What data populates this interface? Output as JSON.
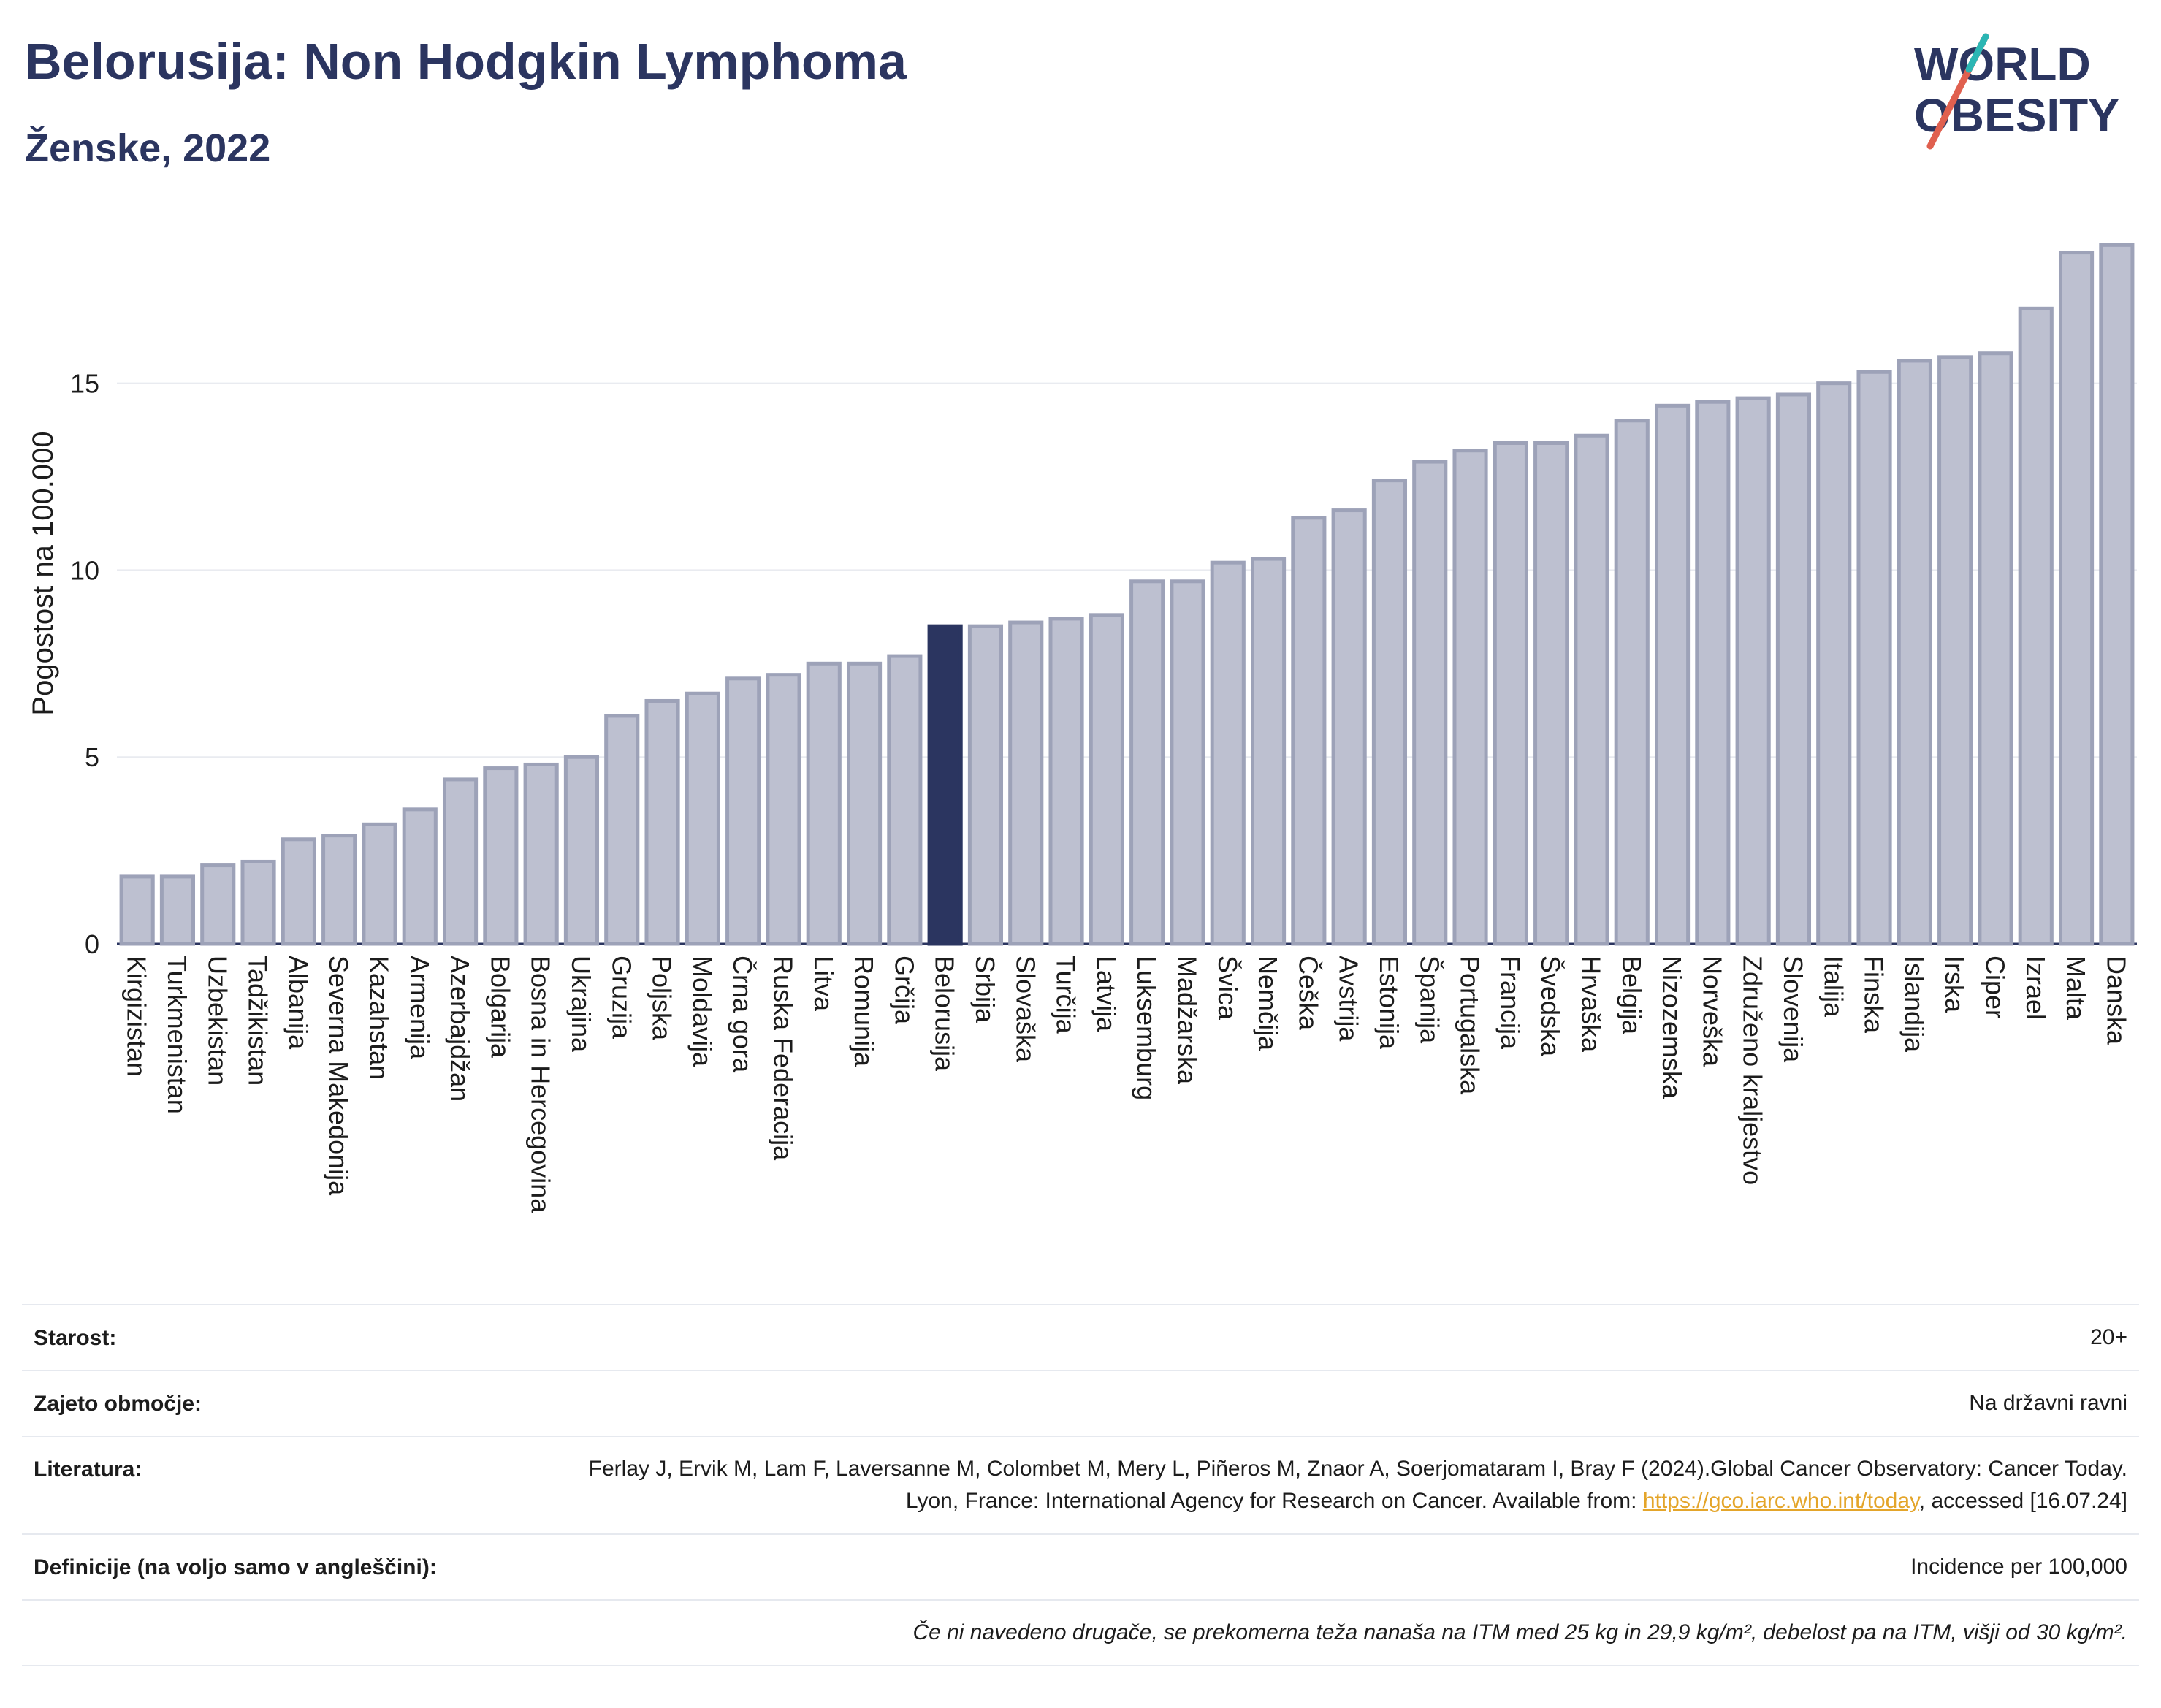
{
  "title": "Belorusija: Non Hodgkin Lymphoma",
  "subtitle": "Ženske, 2022",
  "logo": {
    "line1": "WORLD",
    "line2": "OBESITY",
    "accent_color": "#e0604f",
    "accent2_color": "#2bb6b4"
  },
  "colors": {
    "bar": "#bdc0d0",
    "bar_stroke": "#9da2b8",
    "highlight": "#2b3560",
    "grid": "#e9ebf0",
    "axis": "#2b3560"
  },
  "chart_data": {
    "type": "bar",
    "ylabel": "Pogostost na 100.000",
    "ylim": [
      0,
      19
    ],
    "yticks": [
      0,
      5,
      10,
      15
    ],
    "highlight": "Belorusija",
    "categories": [
      "Kirgizistan",
      "Turkmenistan",
      "Uzbekistan",
      "Tadžikistan",
      "Albanija",
      "Severna Makedonija",
      "Kazahstan",
      "Armenija",
      "Azerbajdžan",
      "Bolgarija",
      "Bosna in Hercegovina",
      "Ukrajina",
      "Gruzija",
      "Poljska",
      "Moldavija",
      "Črna gora",
      "Ruska Federacija",
      "Litva",
      "Romunija",
      "Grčija",
      "Belorusija",
      "Srbija",
      "Slovaška",
      "Turčija",
      "Latvija",
      "Luksemburg",
      "Madžarska",
      "Švica",
      "Nemčija",
      "Češka",
      "Avstrija",
      "Estonija",
      "Španija",
      "Portugalska",
      "Francija",
      "Švedska",
      "Hrvaška",
      "Belgija",
      "Nizozemska",
      "Norveška",
      "Združeno kraljestvo",
      "Slovenija",
      "Italija",
      "Finska",
      "Islandija",
      "Irska",
      "Ciper",
      "Izrael",
      "Malta",
      "Danska"
    ],
    "values": [
      1.8,
      1.8,
      2.1,
      2.2,
      2.8,
      2.9,
      3.2,
      3.6,
      4.4,
      4.7,
      4.8,
      5.0,
      6.1,
      6.5,
      6.7,
      7.1,
      7.2,
      7.5,
      7.5,
      7.7,
      8.5,
      8.5,
      8.6,
      8.7,
      8.8,
      9.7,
      9.7,
      10.2,
      10.3,
      11.4,
      11.6,
      12.4,
      12.9,
      13.2,
      13.4,
      13.4,
      13.6,
      14.0,
      14.4,
      14.5,
      14.6,
      14.7,
      15.0,
      15.3,
      15.6,
      15.7,
      15.8,
      17.0,
      18.5,
      18.7
    ]
  },
  "info": {
    "age_label": "Starost:",
    "age_value": "20+",
    "coverage_label": "Zajeto območje:",
    "coverage_value": "Na državni ravni",
    "lit_label": "Literatura:",
    "lit_text1": "Ferlay J, Ervik M, Lam F, Laversanne M, Colombet M, Mery L, Piñeros M, Znaor A, Soerjomataram I, Bray F (2024).Global Cancer Observatory: Cancer Today. Lyon, France: International Agency for Research on Cancer. Available from: ",
    "lit_link": "https://gco.iarc.who.int/today",
    "lit_text2": ", accessed [16.07.24]",
    "def_label": "Definicije (na voljo samo v angleščini):",
    "def_value": "Incidence per 100,000",
    "note": "Če ni navedeno drugače, se prekomerna teža nanaša na ITM med 25 kg in 29,9 kg/m², debelost pa na ITM, višji od 30 kg/m²."
  }
}
